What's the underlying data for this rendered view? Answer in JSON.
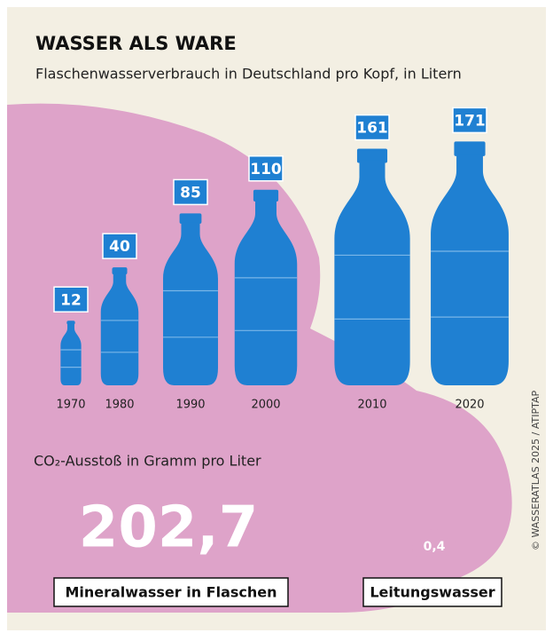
{
  "chart_data": {
    "type": "pictogram",
    "title": "WASSER ALS WARE",
    "subtitle": "Flaschenwasserverbrauch in Deutschland pro Kopf, in Litern",
    "categories": [
      "1970",
      "1980",
      "1990",
      "2000",
      "2010",
      "2020"
    ],
    "values": [
      12,
      40,
      85,
      110,
      161,
      171
    ],
    "color": "#1f80d2"
  },
  "co2": {
    "title": "CO₂-Ausstoß in Gramm pro Liter",
    "values": [
      202.7,
      0.4
    ],
    "value_labels": [
      "202,7",
      "0,4"
    ],
    "labels": [
      "Mineralwasser in Flaschen",
      "Leitungswasser"
    ]
  },
  "credit": "© WASSERATLAS 2025 / ATIPTAP"
}
